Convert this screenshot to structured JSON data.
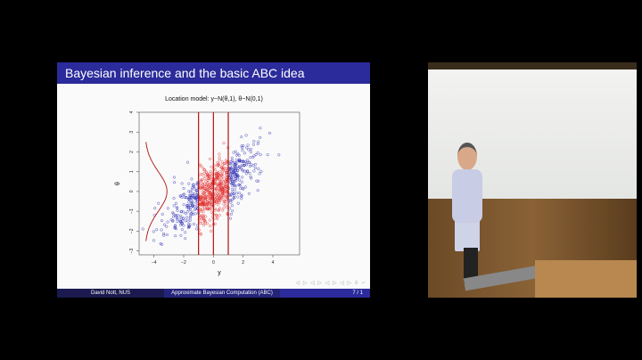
{
  "slide": {
    "title": "Bayesian inference and the basic ABC idea",
    "footer": {
      "author": "David Nott, NUS",
      "talk": "Approximate Bayesian Computation (ABC)",
      "page": "7 / 1"
    },
    "nav_symbols": "◁ ▷ ◁ ▷ ◁ ▷ ◁ ▷ ≡ ∽"
  },
  "chart_data": {
    "type": "scatter",
    "title": "Location model: y~N(θ,1),  θ~N(0,1)",
    "xlabel": "y",
    "ylabel": "θ",
    "xlim": [
      -5,
      5.8
    ],
    "ylim": [
      -3.2,
      4
    ],
    "xticks": [
      -4,
      -2,
      0,
      2,
      4
    ],
    "yticks": [
      -3,
      -2,
      -1,
      0,
      1,
      2,
      3,
      4
    ],
    "model": {
      "theta": "N(0,1)",
      "y_given_theta": "N(theta,1)",
      "sample_size": 800
    },
    "vertical_lines": [
      -1,
      0,
      1
    ],
    "accepted_region": [
      -1,
      1
    ],
    "prior_density_curve": {
      "baseline_x": -4.6,
      "mean": 0,
      "sd": 1
    },
    "colors": {
      "accepted": "#e02020",
      "rejected": "#2020b0",
      "lines": "#b01010",
      "title_bar": "#2b2b9c"
    }
  }
}
